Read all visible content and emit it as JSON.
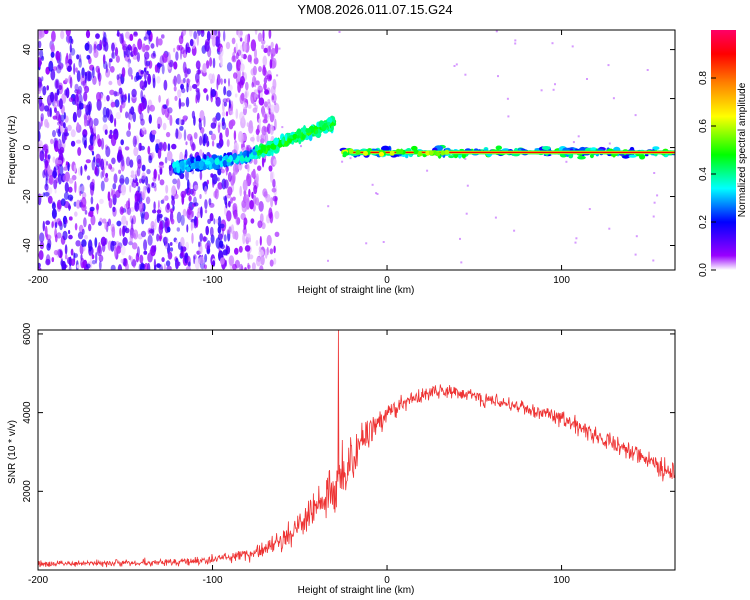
{
  "chart_data": [
    {
      "type": "heatmap",
      "title": "YM08.2026.011.07.15.G24",
      "xlabel": "Height of straight line (km)",
      "ylabel": "Frequency (Hz)",
      "xlim": [
        -200,
        165
      ],
      "ylim": [
        -50,
        48
      ],
      "xticks": [
        -200,
        -100,
        0,
        100
      ],
      "yticks": [
        -40,
        -20,
        0,
        20,
        40
      ],
      "colorbar": {
        "label": "Normalized spectral amplitude",
        "range": [
          0.0,
          1.0
        ],
        "ticks": [
          "0.0",
          "0.2",
          "0.4",
          "0.6",
          "0.8"
        ],
        "tick_values": [
          0.0,
          0.2,
          0.4,
          0.6,
          0.8
        ],
        "colors": [
          "#ffffff",
          "#9900ff",
          "#0000ff",
          "#00ffff",
          "#00ff00",
          "#ffff00",
          "#ff8000",
          "#ff0000",
          "#ff0066"
        ]
      },
      "features": {
        "noise_region_km": [
          -200,
          -68
        ],
        "chirp_track": [
          {
            "x": -122,
            "freq": -8
          },
          {
            "x": -100,
            "freq": -6
          },
          {
            "x": -80,
            "freq": -4
          },
          {
            "x": -60,
            "freq": 2
          },
          {
            "x": -45,
            "freq": 6
          },
          {
            "x": -30,
            "freq": 10
          }
        ],
        "steady_tone": {
          "x_start": -25,
          "x_end": 165,
          "freq": -2
        }
      }
    },
    {
      "type": "line",
      "xlabel": "Height of straight line (km)",
      "ylabel": "SNR (10 * v/v)",
      "xlim": [
        -200,
        165
      ],
      "ylim": [
        0,
        6100
      ],
      "xticks": [
        -200,
        -100,
        0,
        100
      ],
      "yticks": [
        2000,
        4000,
        6000
      ],
      "series": [
        {
          "name": "SNR",
          "color": "#ee3333",
          "envelope_x": [
            -200,
            -150,
            -110,
            -90,
            -70,
            -55,
            -45,
            -35,
            -30,
            -25,
            -20,
            -15,
            -10,
            -5,
            0,
            10,
            20,
            30,
            40,
            60,
            80,
            100,
            120,
            140,
            150,
            165
          ],
          "envelope_mean": [
            150,
            180,
            220,
            300,
            500,
            900,
            1400,
            1900,
            2200,
            2400,
            2800,
            3200,
            3500,
            3750,
            3950,
            4250,
            4450,
            4550,
            4500,
            4300,
            4100,
            3850,
            3400,
            3000,
            2800,
            2400
          ],
          "envelope_spread": [
            120,
            130,
            150,
            180,
            300,
            450,
            600,
            900,
            1500,
            1200,
            900,
            700,
            600,
            500,
            450,
            350,
            300,
            250,
            250,
            250,
            250,
            300,
            300,
            350,
            350,
            400
          ],
          "peak": {
            "x": -28,
            "y": 6100
          }
        }
      ]
    }
  ]
}
